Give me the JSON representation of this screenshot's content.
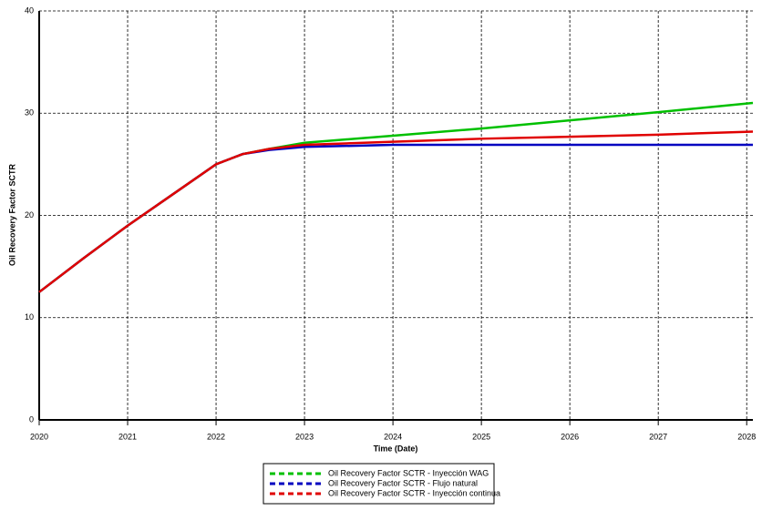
{
  "chart_data": {
    "type": "line",
    "x_label": "Time (Date)",
    "y_label": "Oil Recovery Factor SCTR",
    "x": [
      2020,
      2020.5,
      2021,
      2021.5,
      2022,
      2022.3,
      2022.6,
      2023,
      2024,
      2025,
      2026,
      2027,
      2028.07
    ],
    "series": [
      {
        "name": "Oil Recovery Factor SCTR - Inyección WAG",
        "color": "#00c000",
        "values": [
          12.5,
          15.8,
          19,
          22,
          25,
          26,
          26.5,
          27.1,
          27.8,
          28.5,
          29.3,
          30.1,
          31.0
        ]
      },
      {
        "name": "Oil Recovery Factor SCTR - Flujo natural",
        "color": "#0000c0",
        "values": [
          12.5,
          15.8,
          19,
          22,
          25,
          26,
          26.4,
          26.7,
          26.9,
          26.9,
          26.9,
          26.9,
          26.9
        ]
      },
      {
        "name": "Oil Recovery Factor SCTR - Inyección continua",
        "color": "#e00000",
        "values": [
          12.5,
          15.8,
          19,
          22,
          25,
          26,
          26.5,
          26.9,
          27.2,
          27.5,
          27.7,
          27.9,
          28.2
        ]
      }
    ],
    "xlim": [
      2020,
      2028.07
    ],
    "xticks": [
      2020,
      2021,
      2022,
      2023,
      2024,
      2025,
      2026,
      2027,
      2028
    ],
    "ylim": [
      0,
      40
    ],
    "yticks": [
      0,
      10,
      20,
      30,
      40
    ],
    "grid": true
  }
}
